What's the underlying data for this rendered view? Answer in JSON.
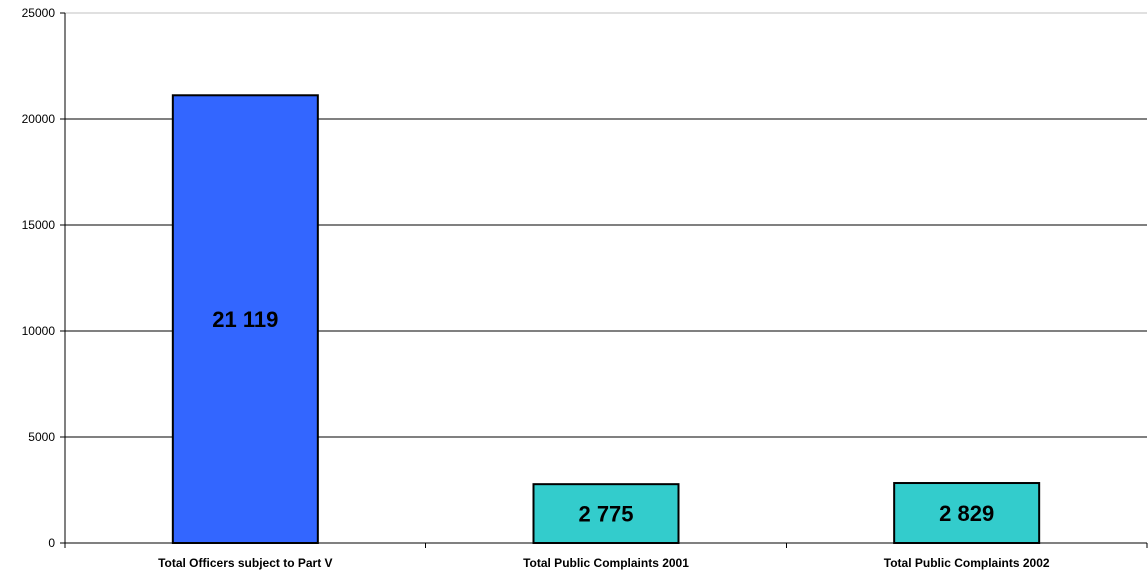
{
  "chart_data": {
    "type": "bar",
    "categories": [
      "Total Officers subject to Part V",
      "Total Public Complaints 2001",
      "Total Public Complaints 2002"
    ],
    "values": [
      21119,
      2775,
      2829
    ],
    "data_labels": [
      "21 119",
      "2 775",
      "2 829"
    ],
    "bar_colors": [
      "#3366ff",
      "#33cccc",
      "#33cccc"
    ],
    "ylim": [
      0,
      25000
    ],
    "yticks": [
      0,
      5000,
      10000,
      15000,
      20000,
      25000
    ],
    "ytick_labels": [
      "0",
      "5000",
      "10000",
      "15000",
      "20000",
      "25000"
    ],
    "grid": true,
    "legend": "none",
    "title": "",
    "xlabel": "",
    "ylabel": ""
  }
}
